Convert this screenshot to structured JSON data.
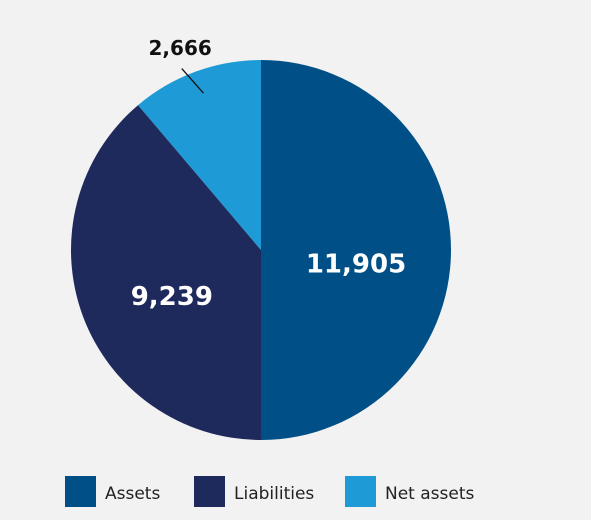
{
  "chart_data": {
    "type": "pie",
    "categories": [
      "Assets",
      "Liabilities",
      "Net assets"
    ],
    "values": [
      11905,
      9239,
      2666
    ],
    "value_labels": [
      "11,905",
      "9,239",
      "2,666"
    ],
    "colors": [
      "#004f86",
      "#1f2a5c",
      "#1e9ad6"
    ],
    "legend": "bottom"
  }
}
